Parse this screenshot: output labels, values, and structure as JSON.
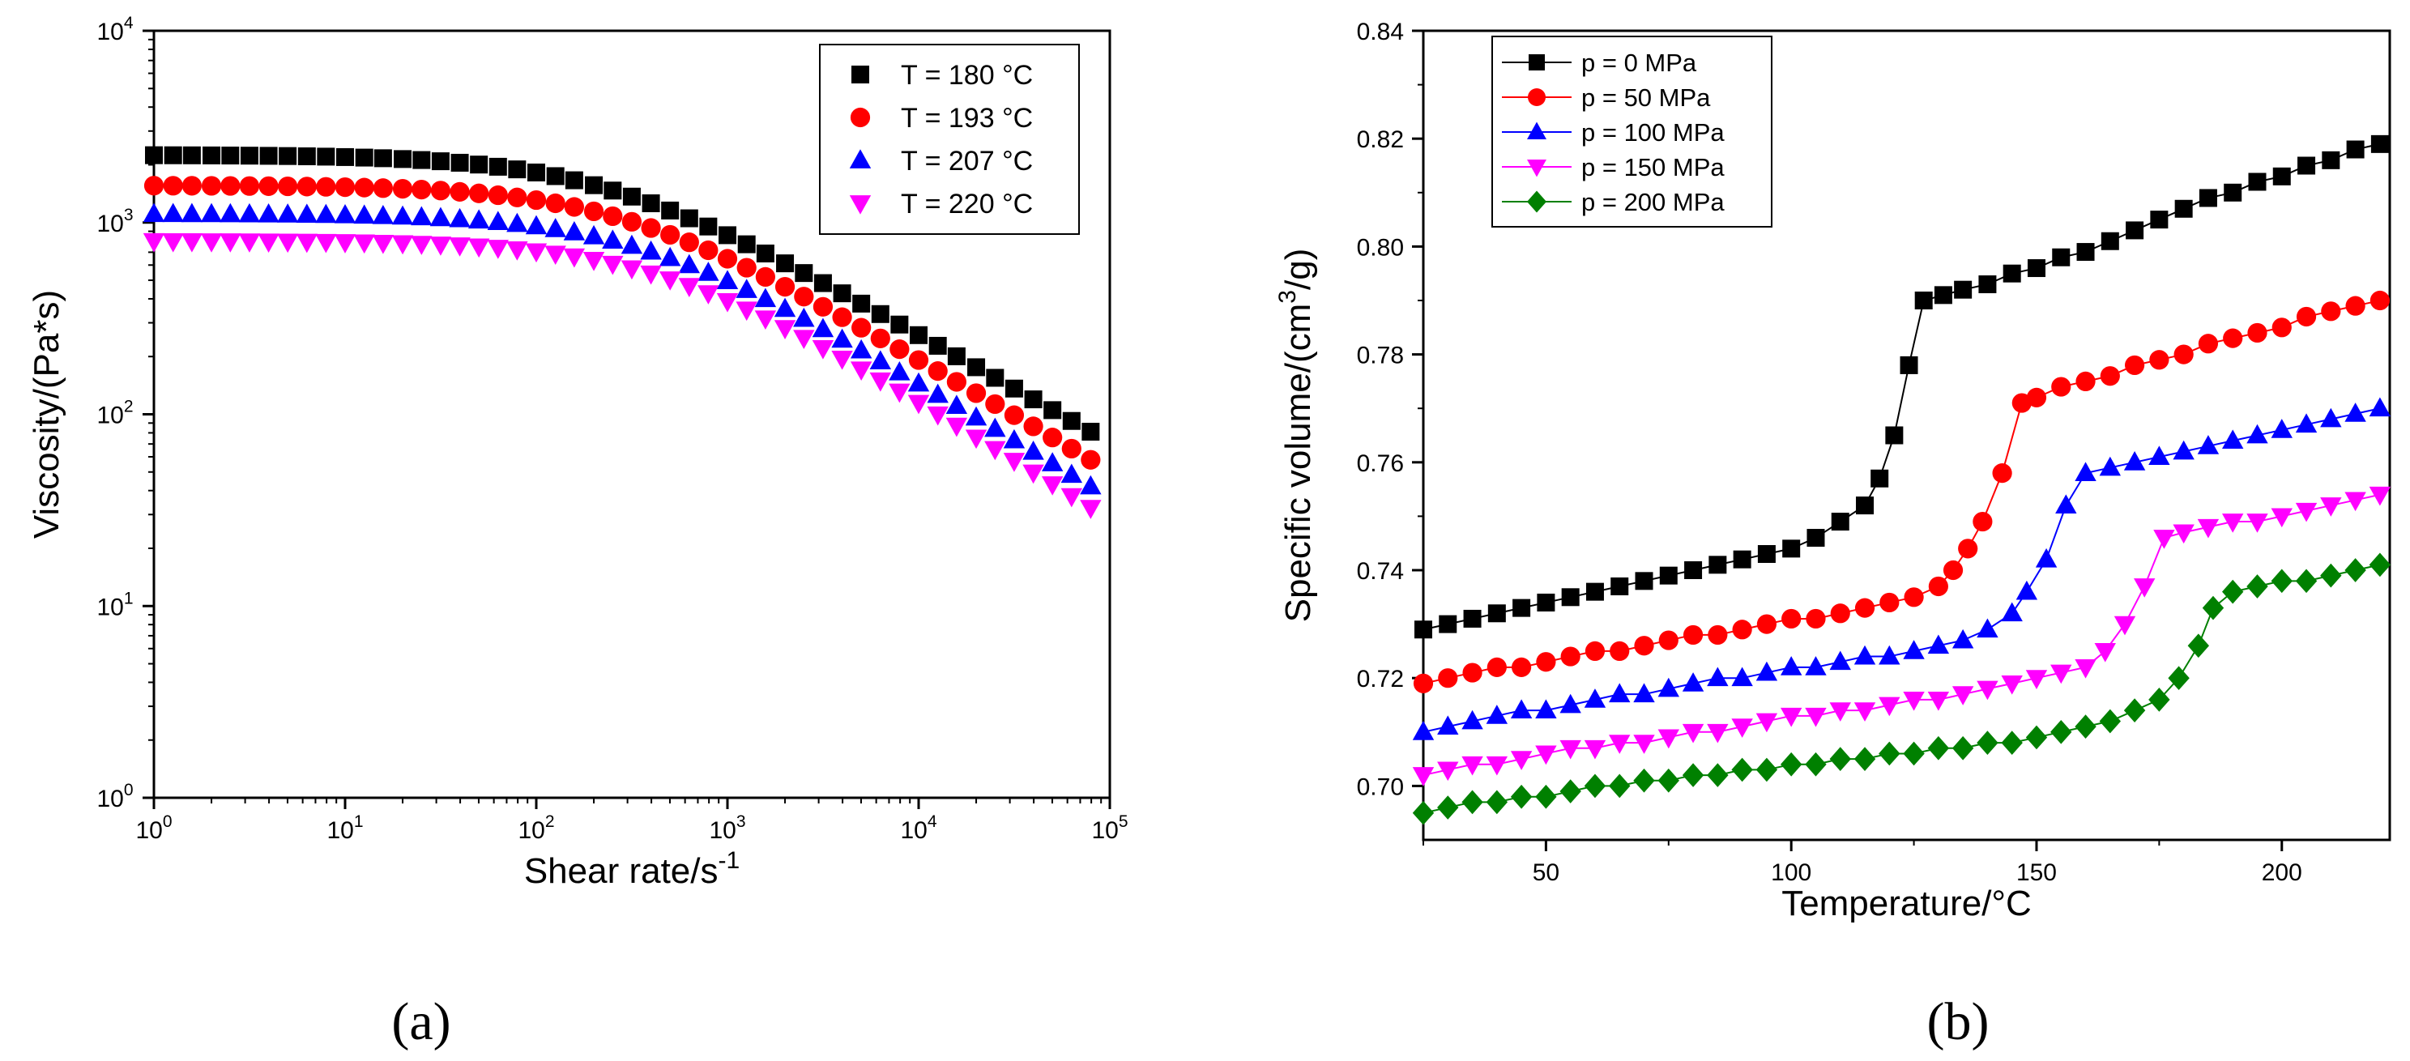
{
  "panel_labels": [
    "(a)",
    "(b)"
  ],
  "chart_data": [
    {
      "type": "scatter",
      "xlabel": "Shear rate/s",
      "xlabel_sup": "-1",
      "ylabel": "Viscosity/(Pa*s)",
      "xscale": "log",
      "yscale": "log",
      "xlim": [
        1,
        100000
      ],
      "ylim": [
        1,
        10000
      ],
      "xtick_base": "10",
      "xtick_exponents": [
        "0",
        "1",
        "2",
        "3",
        "4",
        "5"
      ],
      "ytick_base": "10",
      "ytick_exponents": [
        "0",
        "1",
        "2",
        "3",
        "4"
      ],
      "grid": false,
      "legend_position": "top-right",
      "series": [
        {
          "name": "T = 180 °C",
          "marker": "square",
          "color": "#000000",
          "eta0": 2250,
          "lambda": 0.0045,
          "n": 0.435
        },
        {
          "name": "T = 193 °C",
          "marker": "circle",
          "color": "#ff0000",
          "eta0": 1560,
          "lambda": 0.0035,
          "n": 0.415
        },
        {
          "name": "T = 207 °C",
          "marker": "triangle-up",
          "color": "#0000ff",
          "eta0": 1110,
          "lambda": 0.0028,
          "n": 0.395
        },
        {
          "name": "T = 220 °C",
          "marker": "triangle-down",
          "color": "#ff00ff",
          "eta0": 800,
          "lambda": 0.0022,
          "n": 0.38
        }
      ],
      "x_points": [
        1,
        1.26,
        1.58,
        2,
        2.51,
        3.16,
        3.98,
        5.01,
        6.31,
        7.94,
        10,
        12.6,
        15.8,
        20,
        25.1,
        31.6,
        39.8,
        50.1,
        63.1,
        79.4,
        100,
        126,
        158,
        200,
        251,
        316,
        398,
        501,
        631,
        794,
        1000,
        1260,
        1580,
        2000,
        2510,
        3160,
        3980,
        5010,
        6310,
        7940,
        10000,
        12600,
        15800,
        20000,
        25100,
        31600,
        39800,
        50100,
        63100,
        79400
      ]
    },
    {
      "type": "line",
      "xlabel": "Temperature/°C",
      "ylabel": "Specific volume/(cm",
      "ylabel_sup": "3",
      "ylabel_tail": "/g)",
      "xlim": [
        25,
        222
      ],
      "ylim": [
        0.69,
        0.84
      ],
      "xticks": [
        50,
        100,
        150,
        200
      ],
      "yticks": [
        0.7,
        0.72,
        0.74,
        0.76,
        0.78,
        0.8,
        0.82,
        0.84
      ],
      "ytick_labels": [
        "0.70",
        "0.72",
        "0.74",
        "0.76",
        "0.78",
        "0.80",
        "0.82",
        "0.84"
      ],
      "grid": false,
      "legend_position": "top-left",
      "series": [
        {
          "name": "p = 0 MPa",
          "marker": "square",
          "color": "#000000",
          "x": [
            25,
            30,
            35,
            40,
            45,
            50,
            55,
            60,
            65,
            70,
            75,
            80,
            85,
            90,
            95,
            100,
            105,
            110,
            115,
            118,
            121,
            124,
            127,
            131,
            135,
            140,
            145,
            150,
            155,
            160,
            165,
            170,
            175,
            180,
            185,
            190,
            195,
            200,
            205,
            210,
            215,
            220
          ],
          "y": [
            0.729,
            0.73,
            0.731,
            0.732,
            0.733,
            0.734,
            0.735,
            0.736,
            0.737,
            0.738,
            0.739,
            0.74,
            0.741,
            0.742,
            0.743,
            0.744,
            0.746,
            0.749,
            0.752,
            0.757,
            0.765,
            0.778,
            0.79,
            0.791,
            0.792,
            0.793,
            0.795,
            0.796,
            0.798,
            0.799,
            0.801,
            0.803,
            0.805,
            0.807,
            0.809,
            0.81,
            0.812,
            0.813,
            0.815,
            0.816,
            0.818,
            0.819
          ]
        },
        {
          "name": "p = 50 MPa",
          "marker": "circle",
          "color": "#ff0000",
          "x": [
            25,
            30,
            35,
            40,
            45,
            50,
            55,
            60,
            65,
            70,
            75,
            80,
            85,
            90,
            95,
            100,
            105,
            110,
            115,
            120,
            125,
            130,
            133,
            136,
            139,
            143,
            147,
            150,
            155,
            160,
            165,
            170,
            175,
            180,
            185,
            190,
            195,
            200,
            205,
            210,
            215,
            220
          ],
          "y": [
            0.719,
            0.72,
            0.721,
            0.722,
            0.722,
            0.723,
            0.724,
            0.725,
            0.725,
            0.726,
            0.727,
            0.728,
            0.728,
            0.729,
            0.73,
            0.731,
            0.731,
            0.732,
            0.733,
            0.734,
            0.735,
            0.737,
            0.74,
            0.744,
            0.749,
            0.758,
            0.771,
            0.772,
            0.774,
            0.775,
            0.776,
            0.778,
            0.779,
            0.78,
            0.782,
            0.783,
            0.784,
            0.785,
            0.787,
            0.788,
            0.789,
            0.79
          ]
        },
        {
          "name": "p = 100 MPa",
          "marker": "triangle-up",
          "color": "#0000ff",
          "x": [
            25,
            30,
            35,
            40,
            45,
            50,
            55,
            60,
            65,
            70,
            75,
            80,
            85,
            90,
            95,
            100,
            105,
            110,
            115,
            120,
            125,
            130,
            135,
            140,
            145,
            148,
            152,
            156,
            160,
            165,
            170,
            175,
            180,
            185,
            190,
            195,
            200,
            205,
            210,
            215,
            220
          ],
          "y": [
            0.71,
            0.711,
            0.712,
            0.713,
            0.714,
            0.714,
            0.715,
            0.716,
            0.717,
            0.717,
            0.718,
            0.719,
            0.72,
            0.72,
            0.721,
            0.722,
            0.722,
            0.723,
            0.724,
            0.724,
            0.725,
            0.726,
            0.727,
            0.729,
            0.732,
            0.736,
            0.742,
            0.752,
            0.758,
            0.759,
            0.76,
            0.761,
            0.762,
            0.763,
            0.764,
            0.765,
            0.766,
            0.767,
            0.768,
            0.769,
            0.77
          ]
        },
        {
          "name": "p = 150 MPa",
          "marker": "triangle-down",
          "color": "#ff00ff",
          "x": [
            25,
            30,
            35,
            40,
            45,
            50,
            55,
            60,
            65,
            70,
            75,
            80,
            85,
            90,
            95,
            100,
            105,
            110,
            115,
            120,
            125,
            130,
            135,
            140,
            145,
            150,
            155,
            160,
            164,
            168,
            172,
            176,
            180,
            185,
            190,
            195,
            200,
            205,
            210,
            215,
            220
          ],
          "y": [
            0.702,
            0.703,
            0.704,
            0.704,
            0.705,
            0.706,
            0.707,
            0.707,
            0.708,
            0.708,
            0.709,
            0.71,
            0.71,
            0.711,
            0.712,
            0.713,
            0.713,
            0.714,
            0.714,
            0.715,
            0.716,
            0.716,
            0.717,
            0.718,
            0.719,
            0.72,
            0.721,
            0.722,
            0.725,
            0.73,
            0.737,
            0.746,
            0.747,
            0.748,
            0.749,
            0.749,
            0.75,
            0.751,
            0.752,
            0.753,
            0.754
          ]
        },
        {
          "name": "p = 200 MPa",
          "marker": "diamond",
          "color": "#008000",
          "x": [
            25,
            30,
            35,
            40,
            45,
            50,
            55,
            60,
            65,
            70,
            75,
            80,
            85,
            90,
            95,
            100,
            105,
            110,
            115,
            120,
            125,
            130,
            135,
            140,
            145,
            150,
            155,
            160,
            165,
            170,
            175,
            179,
            183,
            186,
            190,
            195,
            200,
            205,
            210,
            215,
            220
          ],
          "y": [
            0.695,
            0.696,
            0.697,
            0.697,
            0.698,
            0.698,
            0.699,
            0.7,
            0.7,
            0.701,
            0.701,
            0.702,
            0.702,
            0.703,
            0.703,
            0.704,
            0.704,
            0.705,
            0.705,
            0.706,
            0.706,
            0.707,
            0.707,
            0.708,
            0.708,
            0.709,
            0.71,
            0.711,
            0.712,
            0.714,
            0.716,
            0.72,
            0.726,
            0.733,
            0.736,
            0.737,
            0.738,
            0.738,
            0.739,
            0.74,
            0.741
          ]
        }
      ]
    }
  ]
}
